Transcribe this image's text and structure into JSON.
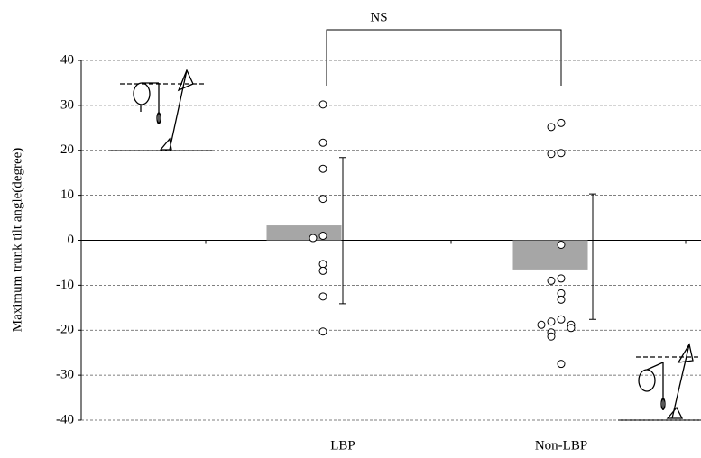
{
  "chart_data": {
    "type": "bar",
    "ylabel": "Maximum trunk tilt angle(degree)",
    "annotation": "NS",
    "categories": [
      "LBP",
      "Non-LBP"
    ],
    "values": [
      3.3,
      -6.5
    ],
    "color": "#a6a6a6",
    "error_upper": [
      18.4,
      10.3
    ],
    "error_lower": [
      -14.1,
      -17.6
    ],
    "points": [
      [
        30.2,
        21.7,
        15.9,
        9.2,
        1.0,
        0.5,
        -5.3,
        -6.8,
        -12.5,
        -20.3
      ],
      [
        26.1,
        25.2,
        19.4,
        19.2,
        -1.0,
        -8.5,
        -9.0,
        -11.8,
        -13.2,
        -17.6,
        -18.1,
        -18.8,
        -18.8,
        -19.5,
        -20.5,
        -21.4,
        -27.5
      ]
    ],
    "ylim": [
      -40,
      40
    ],
    "yticks": [
      -40,
      -30,
      -20,
      -10,
      0,
      10,
      20,
      30,
      40
    ],
    "grid": true
  }
}
